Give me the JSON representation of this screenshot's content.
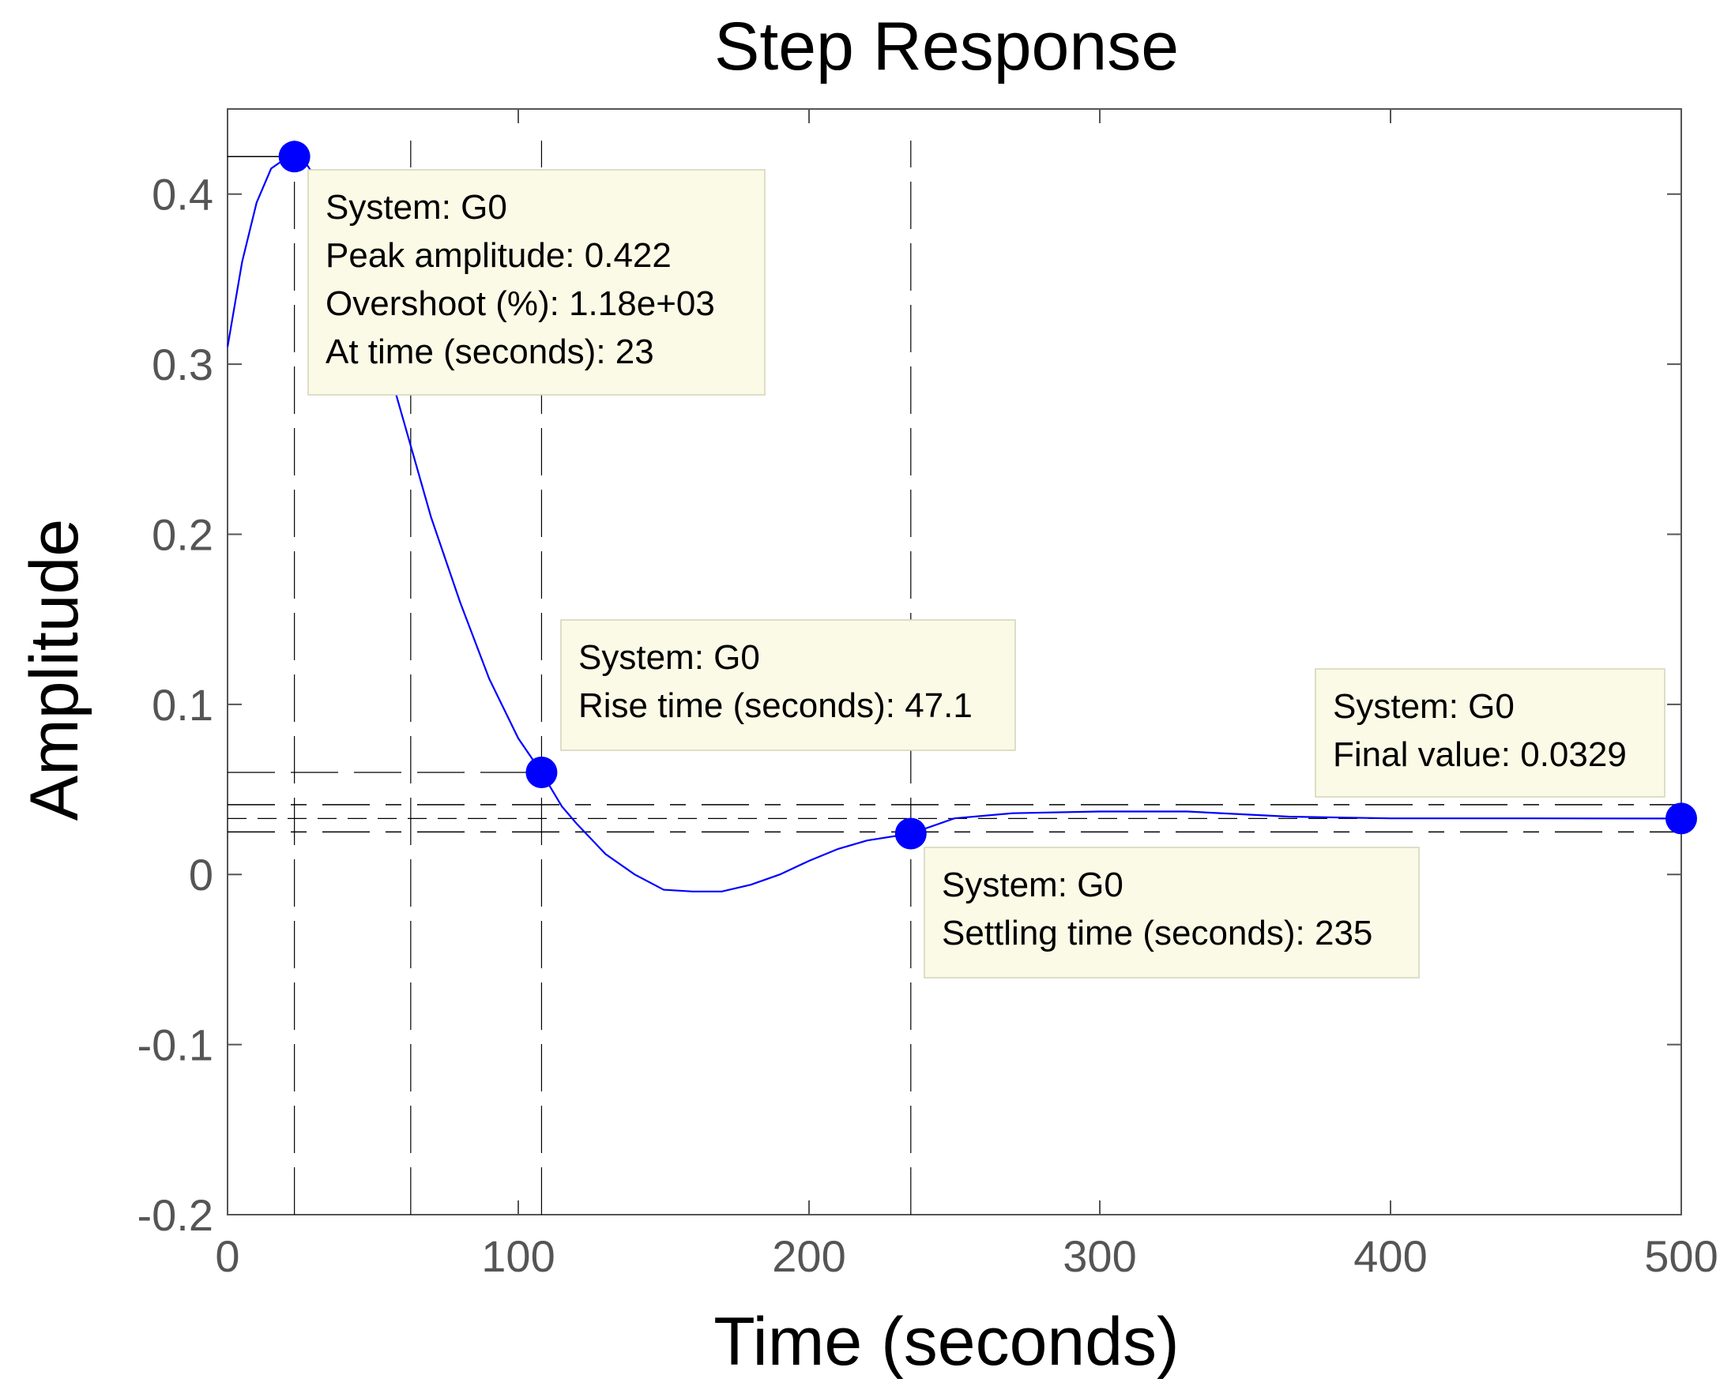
{
  "chart_data": {
    "type": "line",
    "title": "Step Response",
    "xlabel": "Time (seconds)",
    "ylabel": "Amplitude",
    "xlim": [
      0,
      500
    ],
    "ylim": [
      -0.2,
      0.45
    ],
    "xticks": [
      0,
      100,
      200,
      300,
      400,
      500
    ],
    "xtick_labels": [
      "0",
      "100",
      "200",
      "300",
      "400",
      "500"
    ],
    "yticks": [
      -0.2,
      -0.1,
      0,
      0.1,
      0.2,
      0.3,
      0.4
    ],
    "ytick_labels": [
      "-0.2",
      "-0.1",
      "0",
      "0.1",
      "0.2",
      "0.3",
      "0.4"
    ],
    "grid": false,
    "line_color": "#0000ff",
    "marker_color": "#0000ff",
    "tooltip_bg": "#fafae6",
    "series": [
      {
        "x": [
          0,
          5,
          10,
          15,
          20,
          23,
          27,
          32,
          40,
          50,
          60,
          70,
          80,
          90,
          100,
          108,
          115,
          120,
          130,
          140,
          150,
          160,
          170,
          180,
          190,
          200,
          210,
          220,
          235,
          250,
          270,
          300,
          330,
          365,
          400,
          450,
          500
        ],
        "y": [
          0.31,
          0.36,
          0.395,
          0.415,
          0.421,
          0.422,
          0.418,
          0.405,
          0.375,
          0.33,
          0.27,
          0.21,
          0.16,
          0.115,
          0.08,
          0.06,
          0.04,
          0.03,
          0.012,
          0.0,
          -0.009,
          -0.01,
          -0.01,
          -0.006,
          0.0,
          0.008,
          0.015,
          0.02,
          0.024,
          0.033,
          0.036,
          0.037,
          0.037,
          0.034,
          0.033,
          0.033,
          0.0329
        ]
      }
    ],
    "markers": [
      {
        "x": 23,
        "y": 0.422
      },
      {
        "x": 108,
        "y": 0.06
      },
      {
        "x": 235,
        "y": 0.024
      },
      {
        "x": 500,
        "y": 0.0329
      }
    ],
    "reference_lines": {
      "peak_y": 0.422,
      "rise_low_y": 0.06,
      "band_upper_y": 0.041,
      "band_lower_y": 0.025,
      "final_y": 0.0329,
      "dashed_x": [
        23,
        63,
        108,
        235
      ]
    },
    "tooltips": [
      {
        "lines": [
          "System: G0",
          "Peak amplitude: 0.422",
          "Overshoot (%): 1.18e+03",
          "At time (seconds): 23"
        ]
      },
      {
        "lines": [
          "System: G0",
          "Rise time (seconds): 47.1"
        ]
      },
      {
        "lines": [
          "System: G0",
          "Settling time (seconds): 235"
        ]
      },
      {
        "lines": [
          "System: G0",
          "Final value: 0.0329"
        ]
      }
    ]
  }
}
